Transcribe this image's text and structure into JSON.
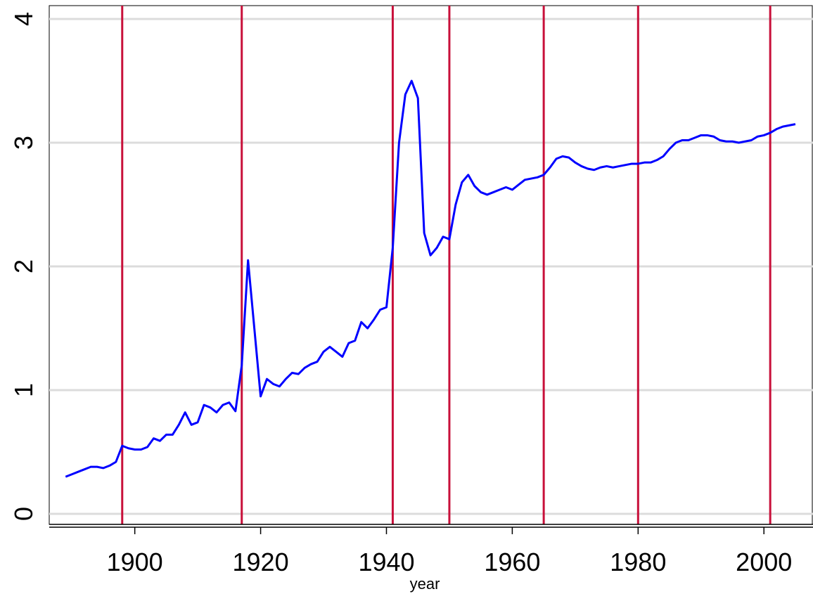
{
  "chart_data": {
    "type": "line",
    "x_label": "year",
    "x": [
      1889,
      1890,
      1891,
      1892,
      1893,
      1894,
      1895,
      1896,
      1897,
      1898,
      1899,
      1900,
      1901,
      1902,
      1903,
      1904,
      1905,
      1906,
      1907,
      1908,
      1909,
      1910,
      1911,
      1912,
      1913,
      1914,
      1915,
      1916,
      1917,
      1918,
      1919,
      1920,
      1921,
      1922,
      1923,
      1924,
      1925,
      1926,
      1927,
      1928,
      1929,
      1930,
      1931,
      1932,
      1933,
      1934,
      1935,
      1936,
      1937,
      1938,
      1939,
      1940,
      1941,
      1942,
      1943,
      1944,
      1945,
      1946,
      1947,
      1948,
      1949,
      1950,
      1951,
      1952,
      1953,
      1954,
      1955,
      1956,
      1957,
      1958,
      1959,
      1960,
      1961,
      1962,
      1963,
      1964,
      1965,
      1966,
      1967,
      1968,
      1969,
      1970,
      1971,
      1972,
      1973,
      1974,
      1975,
      1976,
      1977,
      1978,
      1979,
      1980,
      1981,
      1982,
      1983,
      1984,
      1985,
      1986,
      1987,
      1988,
      1989,
      1990,
      1991,
      1992,
      1993,
      1994,
      1995,
      1996,
      1997,
      1998,
      1999,
      2000,
      2001,
      2002,
      2003,
      2004,
      2005
    ],
    "values": [
      0.3,
      0.32,
      0.34,
      0.36,
      0.38,
      0.38,
      0.37,
      0.39,
      0.42,
      0.55,
      0.53,
      0.52,
      0.52,
      0.54,
      0.61,
      0.59,
      0.64,
      0.64,
      0.72,
      0.82,
      0.72,
      0.74,
      0.88,
      0.86,
      0.82,
      0.88,
      0.9,
      0.83,
      1.2,
      2.05,
      1.5,
      0.95,
      1.09,
      1.05,
      1.03,
      1.09,
      1.14,
      1.13,
      1.18,
      1.21,
      1.23,
      1.31,
      1.35,
      1.31,
      1.27,
      1.38,
      1.4,
      1.55,
      1.5,
      1.57,
      1.65,
      1.67,
      2.15,
      3.0,
      3.39,
      3.5,
      3.36,
      2.27,
      2.09,
      2.15,
      2.24,
      2.22,
      2.5,
      2.68,
      2.74,
      2.65,
      2.6,
      2.58,
      2.6,
      2.62,
      2.64,
      2.62,
      2.66,
      2.7,
      2.71,
      2.72,
      2.74,
      2.8,
      2.87,
      2.89,
      2.88,
      2.84,
      2.81,
      2.79,
      2.78,
      2.8,
      2.81,
      2.8,
      2.81,
      2.82,
      2.83,
      2.83,
      2.84,
      2.84,
      2.86,
      2.89,
      2.95,
      3.0,
      3.02,
      3.02,
      3.04,
      3.06,
      3.06,
      3.05,
      3.02,
      3.01,
      3.01,
      3.0,
      3.01,
      3.02,
      3.05,
      3.06,
      3.08,
      3.11,
      3.13,
      3.14,
      3.15
    ],
    "color": "#0000ff",
    "vlines": [
      1898,
      1917,
      1941,
      1950,
      1965,
      1980,
      2001
    ],
    "vline_color": "#c8103a",
    "xlim": [
      1886.4,
      2007.8
    ],
    "ylim": [
      -0.085,
      4.108
    ],
    "xticks": [
      1900,
      1920,
      1940,
      1960,
      1980,
      2000
    ],
    "yticks": [
      0,
      1,
      2,
      3,
      4
    ],
    "grid": true
  }
}
